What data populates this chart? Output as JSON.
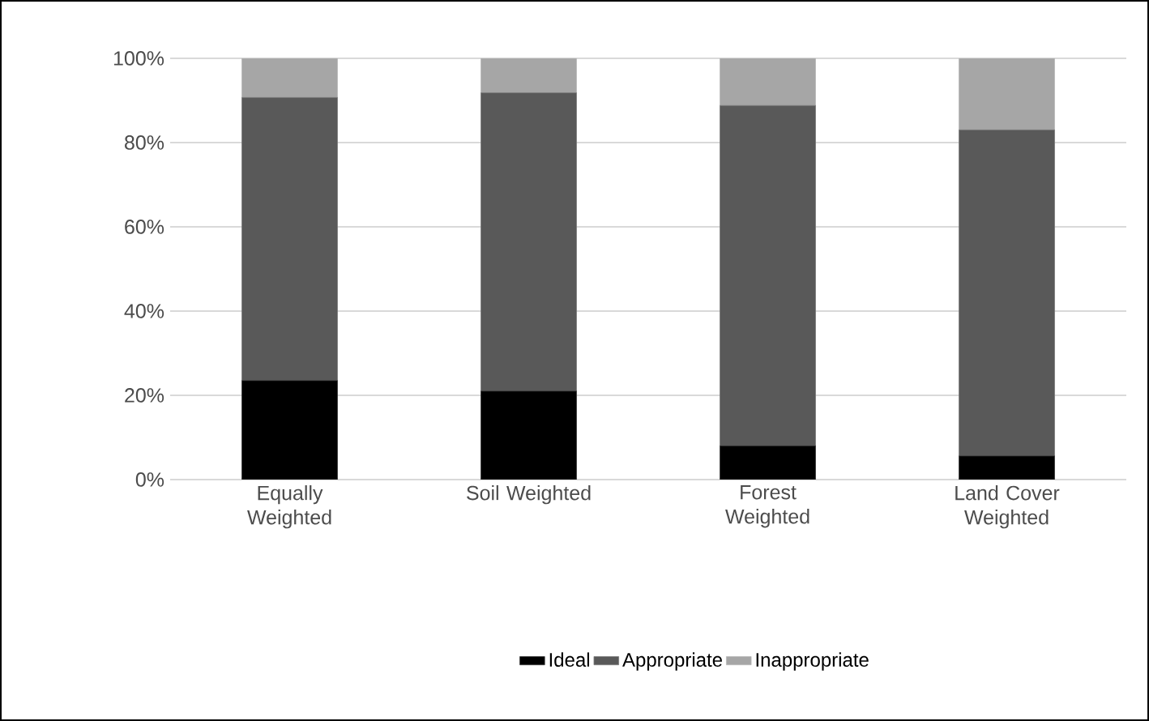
{
  "chart_data": {
    "type": "bar",
    "stacked": true,
    "categories": [
      "Equally Weighted",
      "Soil Weighted",
      "Forest Weighted",
      "Land Cover Weighted"
    ],
    "series": [
      {
        "name": "Ideal",
        "color": "#000000",
        "values": [
          23.5,
          21,
          8,
          5.6
        ]
      },
      {
        "name": "Appropriate",
        "color": "#595959",
        "values": [
          67.2,
          70.8,
          80.8,
          77.4
        ]
      },
      {
        "name": "Inappropriate",
        "color": "#a6a6a6",
        "values": [
          9.3,
          8.2,
          11.2,
          17
        ]
      }
    ],
    "ylim": [
      0,
      100
    ],
    "yticks": [
      {
        "value": 0,
        "label": "0%"
      },
      {
        "value": 20,
        "label": "20%"
      },
      {
        "value": 40,
        "label": "40%"
      },
      {
        "value": 60,
        "label": "60%"
      },
      {
        "value": 80,
        "label": "80%"
      },
      {
        "value": 100,
        "label": "100%"
      }
    ],
    "grid": "y",
    "legend": "bottom"
  }
}
